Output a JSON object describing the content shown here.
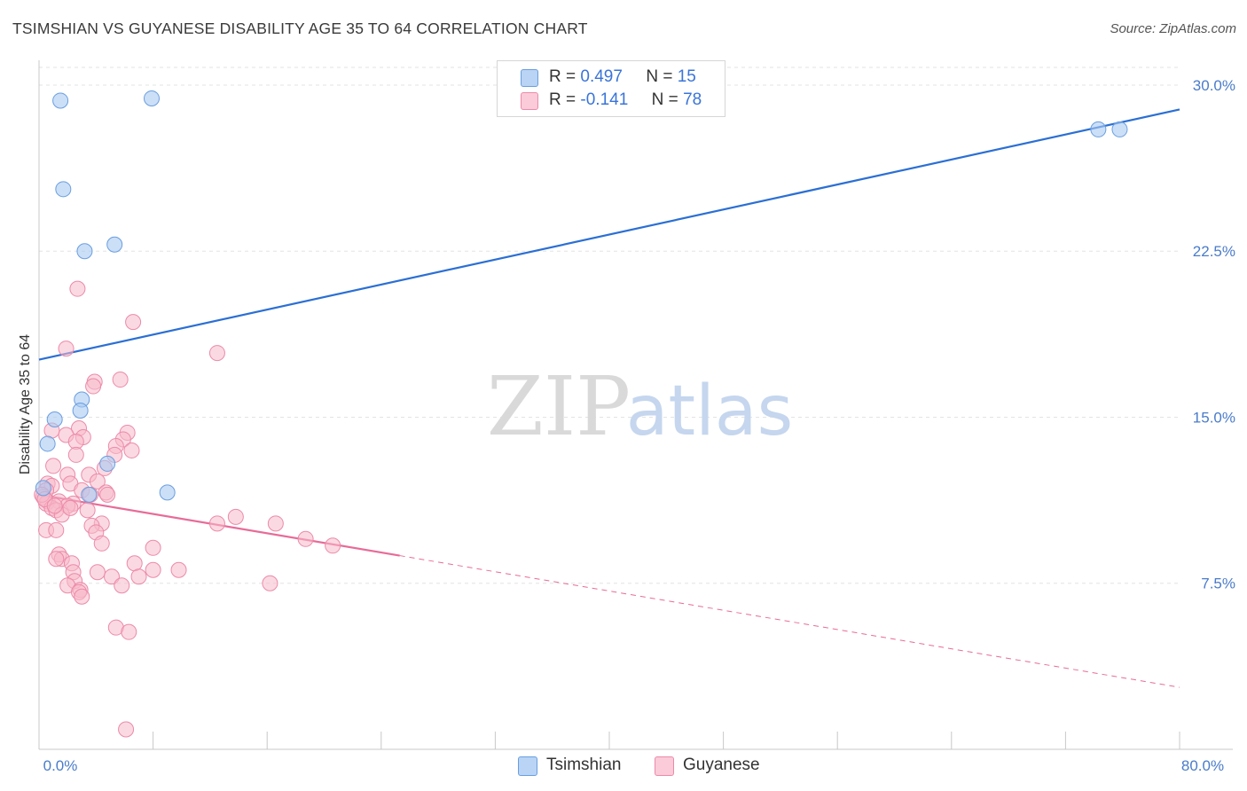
{
  "header": {
    "title": "TSIMSHIAN VS GUYANESE DISABILITY AGE 35 TO 64 CORRELATION CHART",
    "source": "Source: ZipAtlas.com"
  },
  "watermark": {
    "zip": "ZIP",
    "atlas": "atlas"
  },
  "legend": {
    "rows": [
      {
        "r_label": "R =",
        "r_value": "0.497",
        "n_label": "N =",
        "n_value": "15"
      },
      {
        "r_label": "R =",
        "r_value": "-0.141",
        "n_label": "N =",
        "n_value": "78"
      }
    ]
  },
  "bottom_legend": {
    "tsimshian": "Tsimshian",
    "guyanese": "Guyanese"
  },
  "colors": {
    "tsimshian_fill": "#a9c9f2",
    "tsimshian_stroke": "#6a9ee0",
    "tsimshian_line": "#2b6fd4",
    "guyanese_fill": "#f7b9cb",
    "guyanese_stroke": "#ec8aa9",
    "guyanese_line": "#e86b98",
    "axis_text": "#4a7cc9"
  },
  "chart_data": {
    "type": "scatter",
    "title": "TSIMSHIAN VS GUYANESE DISABILITY AGE 35 TO 64 CORRELATION CHART",
    "xlabel": "",
    "ylabel": "Disability Age 35 to 64",
    "xlim": [
      0,
      80
    ],
    "ylim": [
      0,
      30.8
    ],
    "x_tick_labels": [
      "0.0%",
      "80.0%"
    ],
    "y_ticks": [
      7.5,
      15.0,
      22.5,
      30.0
    ],
    "y_tick_labels": [
      "7.5%",
      "15.0%",
      "22.5%",
      "30.0%"
    ],
    "grid": true,
    "series": [
      {
        "name": "Tsimshian",
        "points": [
          [
            1.5,
            29.3
          ],
          [
            7.9,
            29.4
          ],
          [
            1.7,
            25.3
          ],
          [
            3.2,
            22.5
          ],
          [
            5.3,
            22.8
          ],
          [
            3.0,
            15.8
          ],
          [
            2.9,
            15.3
          ],
          [
            1.1,
            14.9
          ],
          [
            0.6,
            13.8
          ],
          [
            4.8,
            12.9
          ],
          [
            9.0,
            11.6
          ],
          [
            3.5,
            11.5
          ],
          [
            0.3,
            11.8
          ],
          [
            74.3,
            28.0
          ],
          [
            75.8,
            28.0
          ]
        ],
        "trend": {
          "x0": 0,
          "y0": 17.6,
          "x1": 80,
          "y1": 28.9
        }
      },
      {
        "name": "Guyanese",
        "points": [
          [
            2.7,
            20.8
          ],
          [
            6.6,
            19.3
          ],
          [
            1.9,
            18.1
          ],
          [
            12.5,
            17.9
          ],
          [
            5.7,
            16.7
          ],
          [
            3.9,
            16.6
          ],
          [
            3.8,
            16.4
          ],
          [
            0.9,
            14.4
          ],
          [
            2.8,
            14.5
          ],
          [
            1.9,
            14.2
          ],
          [
            6.2,
            14.3
          ],
          [
            5.9,
            14.0
          ],
          [
            3.1,
            14.1
          ],
          [
            2.6,
            13.9
          ],
          [
            5.4,
            13.7
          ],
          [
            6.5,
            13.5
          ],
          [
            5.3,
            13.3
          ],
          [
            2.6,
            13.3
          ],
          [
            1.0,
            12.8
          ],
          [
            4.6,
            12.7
          ],
          [
            3.5,
            12.4
          ],
          [
            2.0,
            12.4
          ],
          [
            4.1,
            12.1
          ],
          [
            2.2,
            12.0
          ],
          [
            0.6,
            12.0
          ],
          [
            0.9,
            11.9
          ],
          [
            0.5,
            11.7
          ],
          [
            3.0,
            11.7
          ],
          [
            4.7,
            11.6
          ],
          [
            3.6,
            11.5
          ],
          [
            4.8,
            11.5
          ],
          [
            0.3,
            11.4
          ],
          [
            0.6,
            11.2
          ],
          [
            1.4,
            11.2
          ],
          [
            0.5,
            11.1
          ],
          [
            2.4,
            11.1
          ],
          [
            0.9,
            10.9
          ],
          [
            2.0,
            11.0
          ],
          [
            3.4,
            10.8
          ],
          [
            1.2,
            10.8
          ],
          [
            1.6,
            10.6
          ],
          [
            13.8,
            10.5
          ],
          [
            12.5,
            10.2
          ],
          [
            16.6,
            10.2
          ],
          [
            4.4,
            10.2
          ],
          [
            3.7,
            10.1
          ],
          [
            0.5,
            9.9
          ],
          [
            1.2,
            9.9
          ],
          [
            4.0,
            9.8
          ],
          [
            18.7,
            9.5
          ],
          [
            4.4,
            9.3
          ],
          [
            20.6,
            9.2
          ],
          [
            8.0,
            9.1
          ],
          [
            1.4,
            8.8
          ],
          [
            1.6,
            8.6
          ],
          [
            1.2,
            8.6
          ],
          [
            6.7,
            8.4
          ],
          [
            2.3,
            8.4
          ],
          [
            2.4,
            8.0
          ],
          [
            4.1,
            8.0
          ],
          [
            8.0,
            8.1
          ],
          [
            9.8,
            8.1
          ],
          [
            5.1,
            7.8
          ],
          [
            7.0,
            7.8
          ],
          [
            2.5,
            7.6
          ],
          [
            16.2,
            7.5
          ],
          [
            2.0,
            7.4
          ],
          [
            5.8,
            7.4
          ],
          [
            2.9,
            7.2
          ],
          [
            2.8,
            7.1
          ],
          [
            3.0,
            6.9
          ],
          [
            5.4,
            5.5
          ],
          [
            6.3,
            5.3
          ],
          [
            6.1,
            0.9
          ],
          [
            0.2,
            11.5
          ],
          [
            0.4,
            11.3
          ],
          [
            1.1,
            11.0
          ],
          [
            2.2,
            10.9
          ]
        ],
        "trend": {
          "x0": 0,
          "y0": 11.5,
          "x1": 80,
          "y1": 2.8,
          "solid_until_x": 25.3
        }
      }
    ]
  }
}
